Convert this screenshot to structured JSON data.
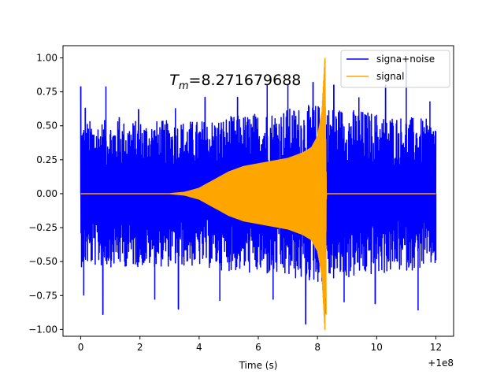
{
  "chart_data": {
    "type": "line",
    "title": "",
    "xlabel": "Time (s)",
    "ylabel": "",
    "x_offset_label": "+1e8",
    "xlim": [
      -0.6,
      12.6
    ],
    "ylim": [
      -1.05,
      1.09
    ],
    "x_ticks": [
      {
        "value": 0,
        "label": "0"
      },
      {
        "value": 2,
        "label": "2"
      },
      {
        "value": 4,
        "label": "4"
      },
      {
        "value": 6,
        "label": "6"
      },
      {
        "value": 8,
        "label": "8"
      },
      {
        "value": 10,
        "label": "10"
      },
      {
        "value": 12,
        "label": "12"
      }
    ],
    "y_ticks": [
      {
        "value": -1.0,
        "label": "−1.00"
      },
      {
        "value": -0.75,
        "label": "−0.75"
      },
      {
        "value": -0.5,
        "label": "−0.50"
      },
      {
        "value": -0.25,
        "label": "−0.25"
      },
      {
        "value": 0.0,
        "label": "0.00"
      },
      {
        "value": 0.25,
        "label": "0.25"
      },
      {
        "value": 0.5,
        "label": "0.50"
      },
      {
        "value": 0.75,
        "label": "0.75"
      },
      {
        "value": 1.0,
        "label": "1.00"
      }
    ],
    "grid": false,
    "legend_position": "top-right",
    "annotation": {
      "text": "T",
      "subscript": "m",
      "value_text": "=8.271679688",
      "x": 3.0,
      "y": 0.8
    },
    "series": [
      {
        "name": "signa+noise",
        "color": "#0000ff",
        "kind": "noise",
        "x_range": [
          0,
          12
        ],
        "typical_envelope": [
          {
            "x": 0.0,
            "upper": 0.45,
            "lower": -0.45
          },
          {
            "x": 4.0,
            "upper": 0.45,
            "lower": -0.45
          },
          {
            "x": 6.0,
            "upper": 0.5,
            "lower": -0.5
          },
          {
            "x": 8.0,
            "upper": 0.55,
            "lower": -0.55
          },
          {
            "x": 12.0,
            "upper": 0.45,
            "lower": -0.45
          }
        ],
        "peaks": [
          {
            "x": 0.0,
            "y": 0.79
          },
          {
            "x": 0.1,
            "y": -0.75
          },
          {
            "x": 0.15,
            "y": 0.63
          },
          {
            "x": 0.85,
            "y": 0.79
          },
          {
            "x": 0.75,
            "y": -0.89
          },
          {
            "x": 1.3,
            "y": 0.56
          },
          {
            "x": 1.95,
            "y": 0.62
          },
          {
            "x": 2.5,
            "y": -0.78
          },
          {
            "x": 3.2,
            "y": 0.63
          },
          {
            "x": 3.3,
            "y": -0.85
          },
          {
            "x": 4.2,
            "y": 0.71
          },
          {
            "x": 4.7,
            "y": -0.79
          },
          {
            "x": 5.3,
            "y": 0.71
          },
          {
            "x": 6.3,
            "y": 0.8
          },
          {
            "x": 6.5,
            "y": -0.78
          },
          {
            "x": 7.0,
            "y": 0.8
          },
          {
            "x": 7.6,
            "y": -0.96
          },
          {
            "x": 7.85,
            "y": 0.82
          },
          {
            "x": 8.25,
            "y": -0.88
          },
          {
            "x": 8.55,
            "y": 0.8
          },
          {
            "x": 8.9,
            "y": -0.8
          },
          {
            "x": 9.4,
            "y": 0.71
          },
          {
            "x": 9.95,
            "y": -0.81
          },
          {
            "x": 10.3,
            "y": 0.8
          },
          {
            "x": 11.0,
            "y": 0.97
          },
          {
            "x": 11.4,
            "y": -0.86
          },
          {
            "x": 11.8,
            "y": 0.68
          },
          {
            "x": 12.0,
            "y": -0.49
          }
        ]
      },
      {
        "name": "signal",
        "color": "#ffa500",
        "kind": "chirp",
        "x_range": [
          0,
          12
        ],
        "merger_time": 8.271679688,
        "envelope": [
          {
            "x": 0.0,
            "amp": 0.0
          },
          {
            "x": 3.0,
            "amp": 0.0
          },
          {
            "x": 3.5,
            "amp": 0.01
          },
          {
            "x": 4.0,
            "amp": 0.04
          },
          {
            "x": 4.5,
            "amp": 0.1
          },
          {
            "x": 5.0,
            "amp": 0.16
          },
          {
            "x": 5.5,
            "amp": 0.2
          },
          {
            "x": 6.0,
            "amp": 0.22
          },
          {
            "x": 6.5,
            "amp": 0.24
          },
          {
            "x": 7.0,
            "amp": 0.26
          },
          {
            "x": 7.5,
            "amp": 0.3
          },
          {
            "x": 7.8,
            "amp": 0.34
          },
          {
            "x": 8.0,
            "amp": 0.42
          },
          {
            "x": 8.15,
            "amp": 0.6
          },
          {
            "x": 8.25,
            "amp": 1.0
          },
          {
            "x": 8.3,
            "amp": 0.0
          },
          {
            "x": 12.0,
            "amp": 0.0
          }
        ]
      }
    ]
  }
}
